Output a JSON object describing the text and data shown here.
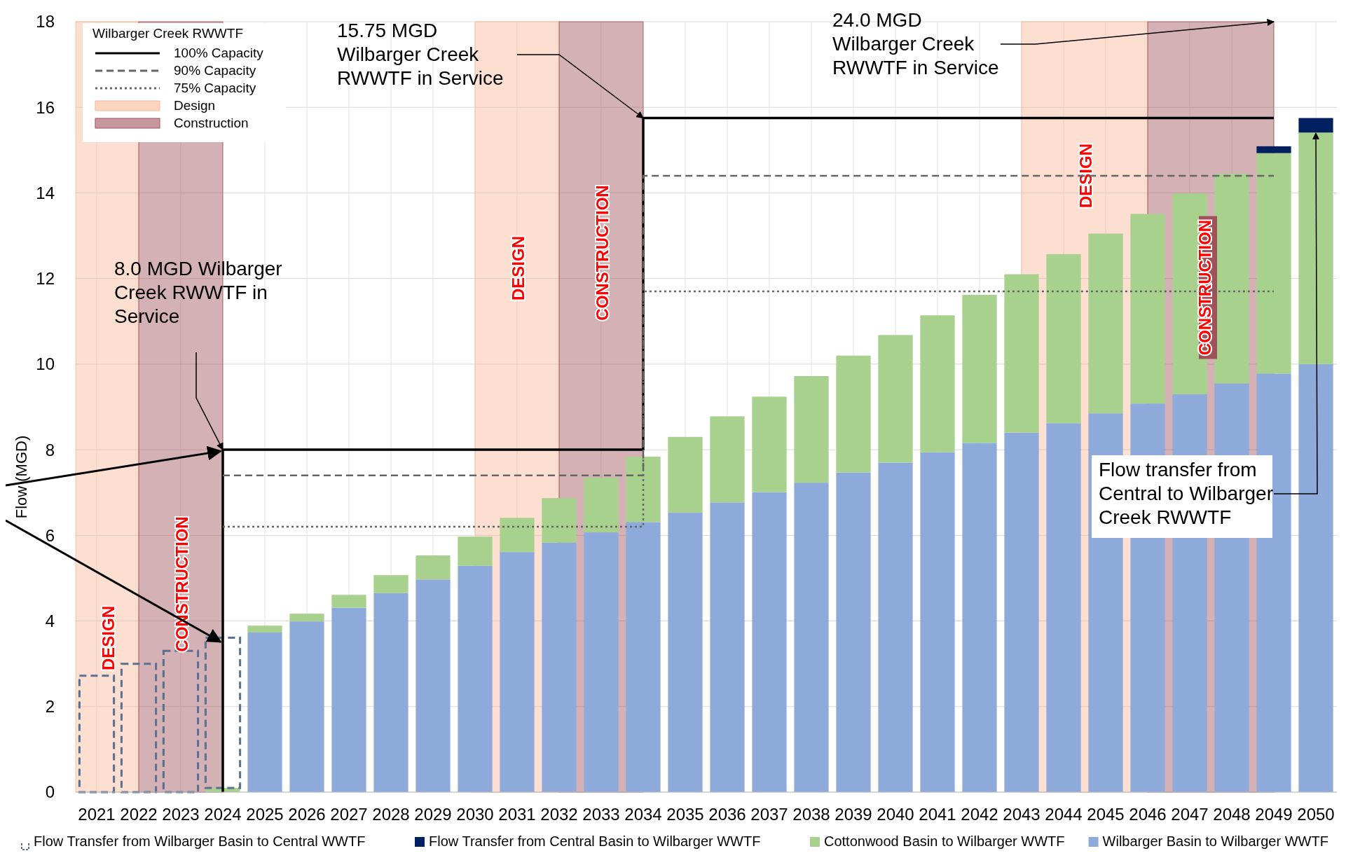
{
  "chart_data": {
    "type": "bar",
    "stacked": true,
    "ylabel": "Flow (MGD)",
    "legend_title": "Wilbarger Creek RWWTF",
    "x": [
      2021,
      2022,
      2023,
      2024,
      2025,
      2026,
      2027,
      2028,
      2029,
      2030,
      2031,
      2032,
      2033,
      2034,
      2035,
      2036,
      2037,
      2038,
      2039,
      2040,
      2041,
      2042,
      2043,
      2044,
      2045,
      2046,
      2047,
      2048,
      2049,
      2050
    ],
    "xlim": [
      2020.5,
      2050.5
    ],
    "xticks": [
      2021,
      2022,
      2023,
      2024,
      2025,
      2026,
      2027,
      2028,
      2029,
      2030,
      2031,
      2032,
      2033,
      2034,
      2035,
      2036,
      2037,
      2038,
      2039,
      2040,
      2041,
      2042,
      2043,
      2044,
      2045,
      2046,
      2047,
      2048,
      2049,
      2050
    ],
    "series": [
      {
        "name": "Wilbarger Basin to Wilbarger WWTF",
        "color": "#8eaadb",
        "values": [
          null,
          null,
          null,
          null,
          3.73,
          3.99,
          4.31,
          4.65,
          4.97,
          5.29,
          5.61,
          5.83,
          6.07,
          6.31,
          6.53,
          6.77,
          7.01,
          7.23,
          7.47,
          7.7,
          7.94,
          8.16,
          8.4,
          8.62,
          8.85,
          9.08,
          9.3,
          9.55,
          9.78,
          10.0
        ]
      },
      {
        "name": "Cottonwood Basin to Wilbarger WWTF",
        "color": "#a9d18e",
        "values": [
          null,
          null,
          null,
          0.1,
          0.16,
          0.18,
          0.3,
          0.42,
          0.56,
          0.68,
          0.8,
          1.04,
          1.28,
          1.53,
          1.77,
          2.01,
          2.23,
          2.49,
          2.73,
          2.98,
          3.2,
          3.46,
          3.7,
          3.95,
          4.2,
          4.43,
          4.69,
          4.9,
          5.15,
          5.41
        ]
      },
      {
        "name": "Flow Transfer from Central Basin to Wilbarger WWTF",
        "color": "#002060",
        "values": [
          null,
          null,
          null,
          null,
          null,
          null,
          null,
          null,
          null,
          null,
          null,
          null,
          null,
          null,
          null,
          null,
          null,
          null,
          null,
          null,
          null,
          null,
          null,
          null,
          null,
          null,
          null,
          null,
          0.16,
          0.34
        ]
      },
      {
        "name": "Flow Transfer from Wilbarger Basin to Central WWTF",
        "color": "#5b7090",
        "line_style": "dashed",
        "values": [
          2.72,
          3.0,
          3.3,
          3.51,
          null,
          null,
          null,
          null,
          null,
          null,
          null,
          null,
          null,
          null,
          null,
          null,
          null,
          null,
          null,
          null,
          null,
          null,
          null,
          null,
          null,
          null,
          null,
          null,
          null,
          null
        ]
      },
      {
        "name": "100% Capacity",
        "type": "line",
        "color": "#000000",
        "line_style": "solid",
        "x": [
          2024,
          2024,
          2034,
          2034,
          2049
        ],
        "values": [
          0,
          8,
          8,
          15.75,
          15.75
        ]
      },
      {
        "name": "90% Capacity",
        "type": "line",
        "color": "#666666",
        "line_style": "dashed",
        "x": [
          2024,
          2034,
          2034,
          2049
        ],
        "values": [
          7.4,
          7.4,
          14.4,
          14.4
        ]
      },
      {
        "name": "75% Capacity",
        "type": "line",
        "color": "#666666",
        "line_style": "dotted",
        "x": [
          2024,
          2034,
          2034,
          2049
        ],
        "values": [
          6.2,
          6.2,
          11.7,
          11.7
        ]
      }
    ],
    "bands": [
      {
        "axis": "x",
        "from": 2020.5,
        "to": 2022,
        "label": "DESIGN",
        "color": "#f9b99a"
      },
      {
        "axis": "x",
        "from": 2022,
        "to": 2024,
        "label": "CONSTRUCTION",
        "color": "#a0525a"
      },
      {
        "axis": "x",
        "from": 2030,
        "to": 2032,
        "label": "DESIGN",
        "color": "#f9b99a"
      },
      {
        "axis": "x",
        "from": 2032,
        "to": 2034,
        "label": "CONSTRUCTION",
        "color": "#a0525a"
      },
      {
        "axis": "x",
        "from": 2043,
        "to": 2046,
        "label": "DESIGN",
        "color": "#f9b99a"
      },
      {
        "axis": "x",
        "from": 2046,
        "to": 2049,
        "label": "CONSTRUCTION",
        "color": "#a0525a"
      }
    ],
    "annotations": [
      {
        "text": "8.0 MGD Wilbarger Creek RWWTF in Service",
        "x": 2024,
        "y": 8
      },
      {
        "text": "15.75 MGD Wilbarger Creek RWWTF in Service",
        "x": 2034,
        "y": 15.75
      },
      {
        "text": "24.0 MGD Wilbarger Creek RWWTF in Service",
        "x": 2049,
        "y": 18
      },
      {
        "text": "Flow transfer from Central to Wilbarger Creek RWWTF",
        "x": 2050,
        "y": 15.4
      },
      "Design",
      "Construction"
    ],
    "ylim": [
      0,
      18
    ],
    "yticks": [
      0,
      2,
      4,
      6,
      8,
      10,
      12,
      14,
      16,
      18
    ],
    "grid": true,
    "legend": "bottom"
  }
}
